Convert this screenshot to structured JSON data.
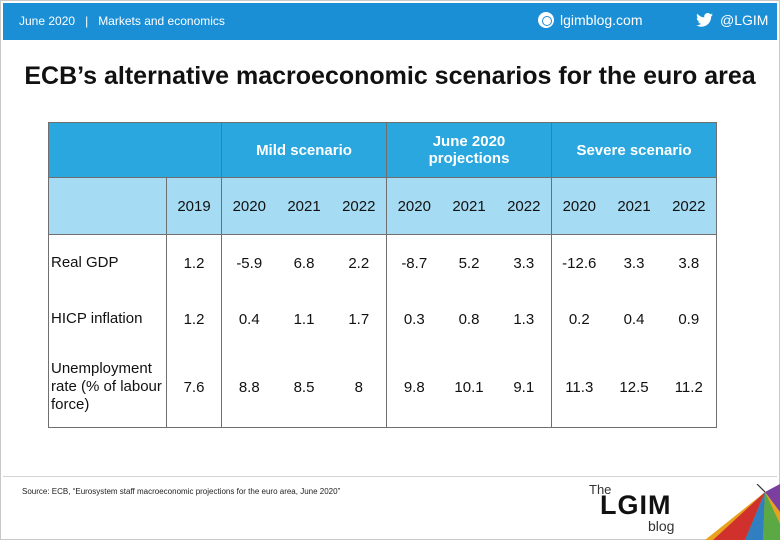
{
  "header": {
    "date": "June 2020",
    "separator": "|",
    "section": "Markets and economics",
    "site": "lgimblog.com",
    "twitter": "@LGIM"
  },
  "title": "ECB’s alternative macroeconomic scenarios for the euro area",
  "table": {
    "groups": [
      "Mild scenario",
      "June 2020 projections",
      "Severe scenario"
    ],
    "years": [
      "2019",
      "2020",
      "2021",
      "2022",
      "2020",
      "2021",
      "2022",
      "2020",
      "2021",
      "2022"
    ],
    "rows": [
      {
        "label": "Real GDP",
        "values": [
          "1.2",
          "-5.9",
          "6.8",
          "2.2",
          "-8.7",
          "5.2",
          "3.3",
          "-12.6",
          "3.3",
          "3.8"
        ]
      },
      {
        "label": "HICP inflation",
        "values": [
          "1.2",
          "0.4",
          "1.1",
          "1.7",
          "0.3",
          "0.8",
          "1.3",
          "0.2",
          "0.4",
          "0.9"
        ]
      },
      {
        "label": "Unemployment rate (% of labour force)",
        "values": [
          "7.6",
          "8.8",
          "8.5",
          "8",
          "9.8",
          "10.1",
          "9.1",
          "11.3",
          "12.5",
          "11.2"
        ]
      }
    ]
  },
  "source": "Source: ECB, “Eurosystem staff macroeconomic projections for the euro area, June 2020”",
  "logo": {
    "the": "The",
    "main": "LGIM",
    "blog": "blog"
  },
  "icons": {
    "site": "globe-icon",
    "twitter": "twitter-bird-icon",
    "logo": "umbrella-logo-icon"
  },
  "colors": {
    "topbar": "#1a8fd6",
    "header_dark": "#2aa7de",
    "header_light": "#a6dcf3"
  }
}
